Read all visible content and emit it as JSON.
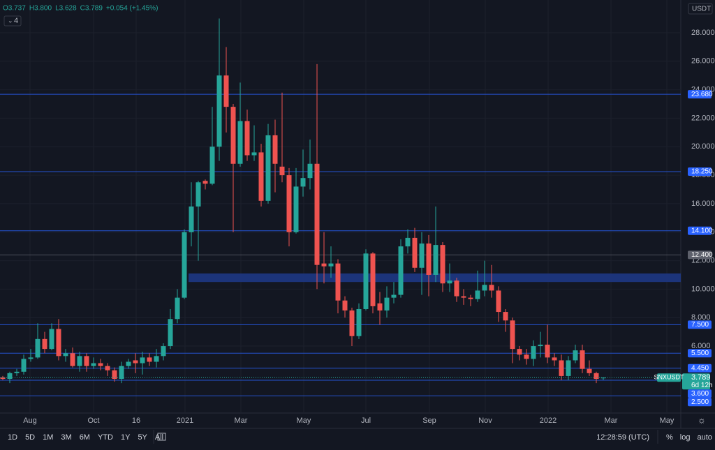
{
  "header": {
    "ohlc": [
      "O3.737",
      "H3.800",
      "L3.628",
      "C3.789",
      "+0.054 (+1.45%)"
    ],
    "indicator_count": "4",
    "currency": "USDT"
  },
  "chart_data": {
    "type": "candlestick",
    "up_color": "#26a69a",
    "down_color": "#ef5350",
    "open": [
      3.8,
      3.7,
      4.1,
      4.2,
      5.1,
      5.2,
      6.5,
      5.8,
      7.2,
      5.3,
      5.5,
      4.6,
      5.3,
      4.6,
      4.8,
      4.6,
      4.3,
      3.7,
      4.6,
      5.0,
      4.8,
      5.2,
      4.9,
      5.3,
      6.0,
      7.9,
      9.4,
      14.0,
      15.8,
      17.6,
      17.4,
      20.0,
      25.0,
      22.8,
      18.8,
      21.8,
      19.4,
      19.6,
      16.2,
      20.8,
      18.6,
      18.0,
      14.0,
      17.2,
      17.8,
      18.8,
      11.8,
      11.6,
      11.8,
      9.2,
      8.5,
      6.7,
      8.6,
      12.5,
      9.0,
      8.5,
      9.4,
      9.6,
      13.0,
      13.6,
      11.5,
      13.2,
      11.0,
      13.1,
      10.4,
      10.6,
      9.5,
      9.4,
      9.3,
      9.9,
      10.3,
      9.9,
      8.4,
      7.8,
      5.8,
      5.4,
      5.1,
      6.0,
      6.1,
      5.2,
      5.0,
      3.9,
      5.0,
      5.7,
      4.4,
      4.1,
      3.737
    ],
    "high": [
      3.9,
      4.2,
      4.4,
      5.4,
      5.8,
      7.6,
      7.0,
      7.6,
      7.9,
      5.8,
      5.9,
      5.6,
      5.5,
      5.2,
      5.1,
      4.8,
      4.5,
      4.9,
      5.1,
      5.5,
      5.6,
      5.5,
      5.8,
      6.2,
      8.6,
      10.0,
      14.2,
      17.5,
      17.6,
      17.7,
      22.8,
      29.0,
      27.0,
      23.0,
      24.5,
      22.6,
      21.5,
      20.2,
      21.6,
      21.9,
      23.8,
      18.5,
      18.5,
      19.8,
      20.5,
      25.8,
      14.0,
      13.0,
      12.1,
      9.5,
      8.7,
      9.0,
      12.8,
      12.6,
      9.8,
      10.2,
      10.5,
      13.5,
      14.2,
      14.3,
      14.0,
      13.8,
      15.8,
      13.3,
      11.8,
      10.8,
      10.0,
      9.6,
      11.3,
      12.0,
      11.7,
      10.2,
      8.6,
      8.0,
      6.0,
      5.8,
      6.4,
      7.0,
      7.5,
      5.5,
      5.4,
      5.3,
      6.1,
      6.1,
      5.0,
      4.2,
      3.8
    ],
    "low": [
      3.6,
      3.4,
      3.9,
      4.0,
      4.9,
      5.1,
      5.5,
      5.7,
      5.0,
      4.9,
      4.5,
      4.2,
      4.2,
      4.4,
      4.3,
      3.9,
      3.5,
      3.4,
      4.4,
      4.1,
      4.0,
      4.6,
      4.5,
      5.0,
      5.8,
      7.6,
      9.3,
      13.0,
      12.0,
      17.0,
      17.3,
      19.0,
      21.0,
      14.0,
      18.6,
      19.0,
      19.0,
      15.8,
      16.0,
      16.8,
      17.5,
      13.0,
      13.9,
      16.5,
      17.0,
      10.0,
      10.4,
      10.8,
      8.3,
      8.0,
      6.0,
      6.5,
      8.5,
      8.3,
      7.5,
      8.0,
      9.0,
      9.4,
      12.5,
      11.2,
      9.6,
      9.5,
      10.5,
      9.8,
      9.8,
      9.1,
      8.9,
      8.8,
      9.1,
      9.5,
      9.4,
      7.7,
      7.0,
      4.8,
      5.0,
      4.7,
      4.6,
      5.2,
      4.8,
      4.6,
      3.6,
      3.6,
      4.8,
      4.1,
      3.9,
      3.4,
      3.628
    ],
    "close": [
      3.7,
      4.1,
      4.2,
      5.1,
      5.2,
      6.5,
      5.8,
      7.2,
      5.3,
      5.5,
      4.6,
      5.3,
      4.6,
      4.8,
      4.6,
      4.3,
      3.7,
      4.6,
      4.9,
      4.8,
      5.2,
      4.9,
      5.3,
      6.0,
      7.9,
      9.4,
      14.0,
      15.8,
      17.5,
      17.4,
      20.0,
      25.0,
      22.8,
      18.8,
      21.8,
      19.4,
      19.6,
      16.2,
      20.8,
      18.8,
      18.0,
      14.0,
      17.2,
      17.8,
      18.8,
      11.7,
      11.6,
      11.8,
      9.2,
      8.5,
      6.7,
      8.6,
      12.5,
      8.8,
      8.5,
      9.4,
      9.6,
      13.0,
      13.6,
      11.5,
      13.2,
      11.0,
      13.1,
      10.4,
      10.6,
      9.5,
      9.4,
      9.3,
      9.9,
      10.3,
      9.9,
      8.4,
      7.8,
      5.8,
      5.4,
      5.1,
      6.0,
      6.1,
      5.2,
      5.0,
      3.9,
      5.0,
      5.7,
      4.4,
      4.1,
      3.7,
      3.789
    ],
    "xlim": [
      -0.4,
      97.1
    ],
    "xticks": [
      {
        "value": 3.9,
        "label": "Aug"
      },
      {
        "value": 13,
        "label": "Oct"
      },
      {
        "value": 19.1,
        "label": "16"
      },
      {
        "value": 26.1,
        "label": "2021"
      },
      {
        "value": 34.1,
        "label": "Mar"
      },
      {
        "value": 43.1,
        "label": "May"
      },
      {
        "value": 52,
        "label": "Jul"
      },
      {
        "value": 61.1,
        "label": "Sep"
      },
      {
        "value": 69.1,
        "label": "Nov"
      },
      {
        "value": 78.1,
        "label": "2022"
      },
      {
        "value": 87.1,
        "label": "Mar"
      },
      {
        "value": 95.1,
        "label": "May"
      }
    ],
    "ylim": [
      1.3,
      30.3
    ],
    "yticks": [
      {
        "value": 6,
        "label": "6.000"
      },
      {
        "value": 8,
        "label": "8.000"
      },
      {
        "value": 10,
        "label": "10.000"
      },
      {
        "value": 12,
        "label": "12.000"
      },
      {
        "value": 14,
        "label": "14.000"
      },
      {
        "value": 16,
        "label": "16.000"
      },
      {
        "value": 18,
        "label": "18.000"
      },
      {
        "value": 20,
        "label": "20.000"
      },
      {
        "value": 22,
        "label": "22.000"
      },
      {
        "value": 24,
        "label": "24.000"
      },
      {
        "value": 26,
        "label": "26.000"
      },
      {
        "value": 28,
        "label": "28.000"
      }
    ],
    "grid": true,
    "price_lines": [
      {
        "value": 23.68,
        "label": "23.680",
        "color": "#2962ff"
      },
      {
        "value": 18.25,
        "label": "18.250",
        "color": "#2962ff"
      },
      {
        "value": 14.1,
        "label": "14.100",
        "color": "#2962ff"
      },
      {
        "value": 12.4,
        "label": "12.400",
        "color": "#5d606b"
      },
      {
        "value": 7.5,
        "label": "7.500",
        "color": "#2962ff"
      },
      {
        "value": 5.5,
        "label": "5.500",
        "color": "#2962ff"
      },
      {
        "value": 4.45,
        "label": "4.450",
        "color": "#2962ff"
      },
      {
        "value": 3.6,
        "label": "3.600",
        "color": "#2962ff"
      },
      {
        "value": 2.5,
        "label": "2.500",
        "color": "#2962ff"
      }
    ],
    "zone": {
      "low": 10.5,
      "high": 11.1,
      "x_start": 26.6,
      "color": "#1e3a8a"
    },
    "current_price": {
      "value": 3.789,
      "label": "3.789",
      "symbol": "SNXUSDT",
      "countdown": "6d 12h",
      "color": "#26a69a"
    }
  },
  "toolbar": {
    "ranges": [
      "1D",
      "5D",
      "1M",
      "3M",
      "6M",
      "YTD",
      "1Y",
      "5Y",
      "All"
    ],
    "clock": "12:28:59 (UTC)",
    "options": [
      "%",
      "log",
      "auto"
    ]
  }
}
